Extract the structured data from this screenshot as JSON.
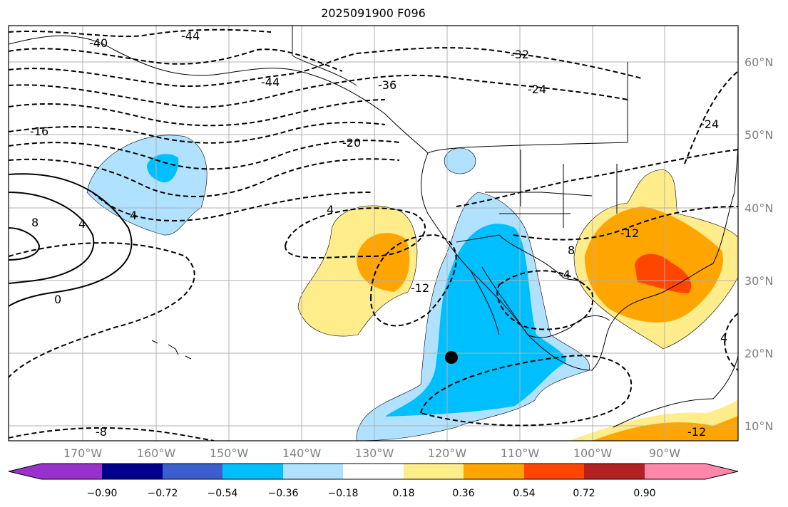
{
  "title": "2025091900 F096",
  "colors": {
    "c1": "#9932CC",
    "c2": "#00008B",
    "c3": "#3A5FCD",
    "c4": "#00BFFF",
    "c5": "#B0E2FF",
    "c6": "#FFFFFF",
    "c7": "#FFEC8B",
    "c8": "#FFA500",
    "c9": "#FF4500",
    "c10": "#B22222",
    "c11": "#FF88AA"
  },
  "map": {
    "lon_labels": [
      "170°W",
      "160°W",
      "150°W",
      "140°W",
      "130°W",
      "120°W",
      "110°W",
      "100°W",
      "90°W"
    ],
    "lat_labels": [
      "60°N",
      "50°N",
      "40°N",
      "30°N",
      "20°N",
      "10°N"
    ],
    "contour_labels": [
      "-40",
      "-44",
      "-44",
      "-32",
      "-36",
      "-24",
      "-16",
      "-20",
      "-24",
      "4",
      "4",
      "4",
      "8",
      "0",
      "-8",
      "-12",
      "-12",
      "8",
      "-4",
      "-12",
      "4"
    ]
  },
  "colorbar": {
    "ticks": [
      "−0.90",
      "−0.72",
      "−0.54",
      "−0.36",
      "−0.18",
      "0.18",
      "0.36",
      "0.54",
      "0.72",
      "0.90"
    ]
  }
}
